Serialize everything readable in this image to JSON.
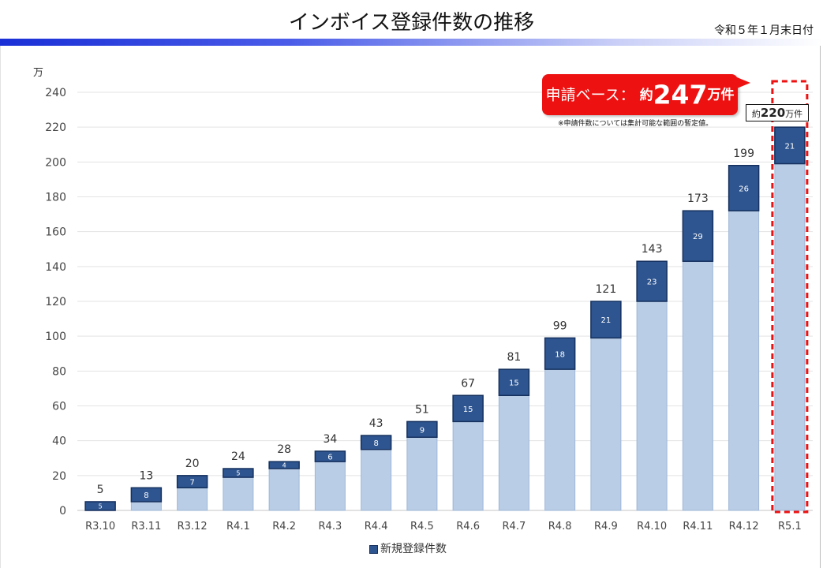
{
  "header": {
    "title": "インボイス登録件数の推移",
    "date": "令和５年１月末日付"
  },
  "callout": {
    "label": "申請ベース：",
    "prefix": "約",
    "number": "247",
    "unit": "万件",
    "note": "※申請件数については集計可能な範囲の暫定値。"
  },
  "estimate": {
    "prefix": "約",
    "number": "220",
    "unit": "万件"
  },
  "legend": {
    "label": "新規登録件数"
  },
  "colors": {
    "base_bar": "#b9cde6",
    "new_bar": "#2e5590",
    "highlight": "#ee1111",
    "header_gradient_start": "#1a2fd6"
  },
  "chart_data": {
    "type": "bar",
    "stacked": true,
    "ylabel": "万",
    "ylim": [
      0,
      240
    ],
    "yticks": [
      0,
      20,
      40,
      60,
      80,
      100,
      120,
      140,
      160,
      180,
      200,
      220,
      240
    ],
    "grid": true,
    "legend_position": "bottom",
    "categories": [
      "R3.10",
      "R3.11",
      "R3.12",
      "R4.1",
      "R4.2",
      "R4.3",
      "R4.4",
      "R4.5",
      "R4.6",
      "R4.7",
      "R4.8",
      "R4.9",
      "R4.10",
      "R4.11",
      "R4.12",
      "R5.1"
    ],
    "series": [
      {
        "values": [
          0,
          5,
          13,
          19,
          24,
          28,
          35,
          42,
          51,
          66,
          81,
          99,
          120,
          143,
          172,
          199
        ]
      },
      {
        "name": "新規登録件数",
        "values": [
          5,
          8,
          7,
          5,
          4,
          6,
          8,
          9,
          15,
          15,
          18,
          21,
          23,
          29,
          26,
          21
        ],
        "labels": [
          "5",
          "8",
          "7",
          "5",
          "4",
          "6",
          "8",
          "9",
          "15",
          "15",
          "18",
          "21",
          "23",
          "29",
          "26",
          "21"
        ]
      }
    ],
    "totals": [
      "5",
      "13",
      "20",
      "24",
      "28",
      "34",
      "43",
      "51",
      "67",
      "81",
      "99",
      "121",
      "143",
      "173",
      "199",
      ""
    ],
    "highlighted_category": "R5.1"
  }
}
